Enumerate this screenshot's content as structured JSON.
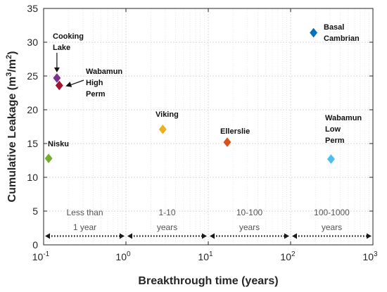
{
  "chart_data": {
    "type": "scatter",
    "xlabel": "Breakthrough time (years)",
    "ylabel": "Cumulative Leakage (m³/m²)",
    "xscale": "log",
    "xlim": [
      0.1,
      1000
    ],
    "ylim": [
      0,
      35
    ],
    "grid": true,
    "x_ticks": [
      {
        "base": "10",
        "exp": "-1"
      },
      {
        "base": "10",
        "exp": "0"
      },
      {
        "base": "10",
        "exp": "1"
      },
      {
        "base": "10",
        "exp": "2"
      },
      {
        "base": "10",
        "exp": "3"
      }
    ],
    "y_ticks": [
      "0",
      "5",
      "10",
      "15",
      "20",
      "25",
      "30",
      "35"
    ],
    "points": [
      {
        "label": [
          "Nisku"
        ],
        "x": 0.115,
        "y": 12.8,
        "color": "#77ac30"
      },
      {
        "label": [
          "Cooking",
          "Lake"
        ],
        "x": 0.145,
        "y": 24.7,
        "color": "#7e2f8e"
      },
      {
        "label": [
          "Wabamun",
          "High",
          "Perm"
        ],
        "x": 0.155,
        "y": 23.6,
        "color": "#a2142f"
      },
      {
        "label": [
          "Viking"
        ],
        "x": 2.8,
        "y": 17.1,
        "color": "#edb120"
      },
      {
        "label": [
          "Ellerslie"
        ],
        "x": 17,
        "y": 15.2,
        "color": "#d95319"
      },
      {
        "label": [
          "Basal",
          "Cambrian"
        ],
        "x": 190,
        "y": 31.4,
        "color": "#0072bd"
      },
      {
        "label": [
          "Wabamun",
          "Low",
          "Perm"
        ],
        "x": 310,
        "y": 12.7,
        "color": "#4dbeee"
      }
    ],
    "regions": [
      {
        "label": [
          "Less than",
          "1 year"
        ],
        "from": 0.1,
        "to": 1
      },
      {
        "label": [
          "1-10",
          "years"
        ],
        "from": 1,
        "to": 10
      },
      {
        "label": [
          "10-100",
          "years"
        ],
        "from": 10,
        "to": 100
      },
      {
        "label": [
          "100-1000",
          "years"
        ],
        "from": 100,
        "to": 1000
      }
    ],
    "region_arrow_y": 1.3
  }
}
